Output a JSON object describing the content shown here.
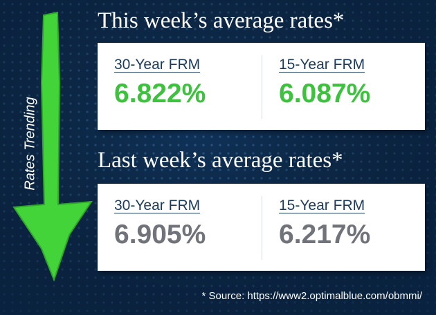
{
  "arrow_label": "Rates Trending",
  "sections": [
    {
      "title": "This week’s average rates*",
      "items": [
        {
          "label": "30-Year FRM",
          "value": "6.822%"
        },
        {
          "label": "15-Year FRM",
          "value": "6.087%"
        }
      ]
    },
    {
      "title": "Last week’s average rates*",
      "items": [
        {
          "label": "30-Year FRM",
          "value": "6.905%"
        },
        {
          "label": "15-Year FRM",
          "value": "6.217%"
        }
      ]
    }
  ],
  "source": "* Source: https://www2.optimalblue.com/obmmi/"
}
